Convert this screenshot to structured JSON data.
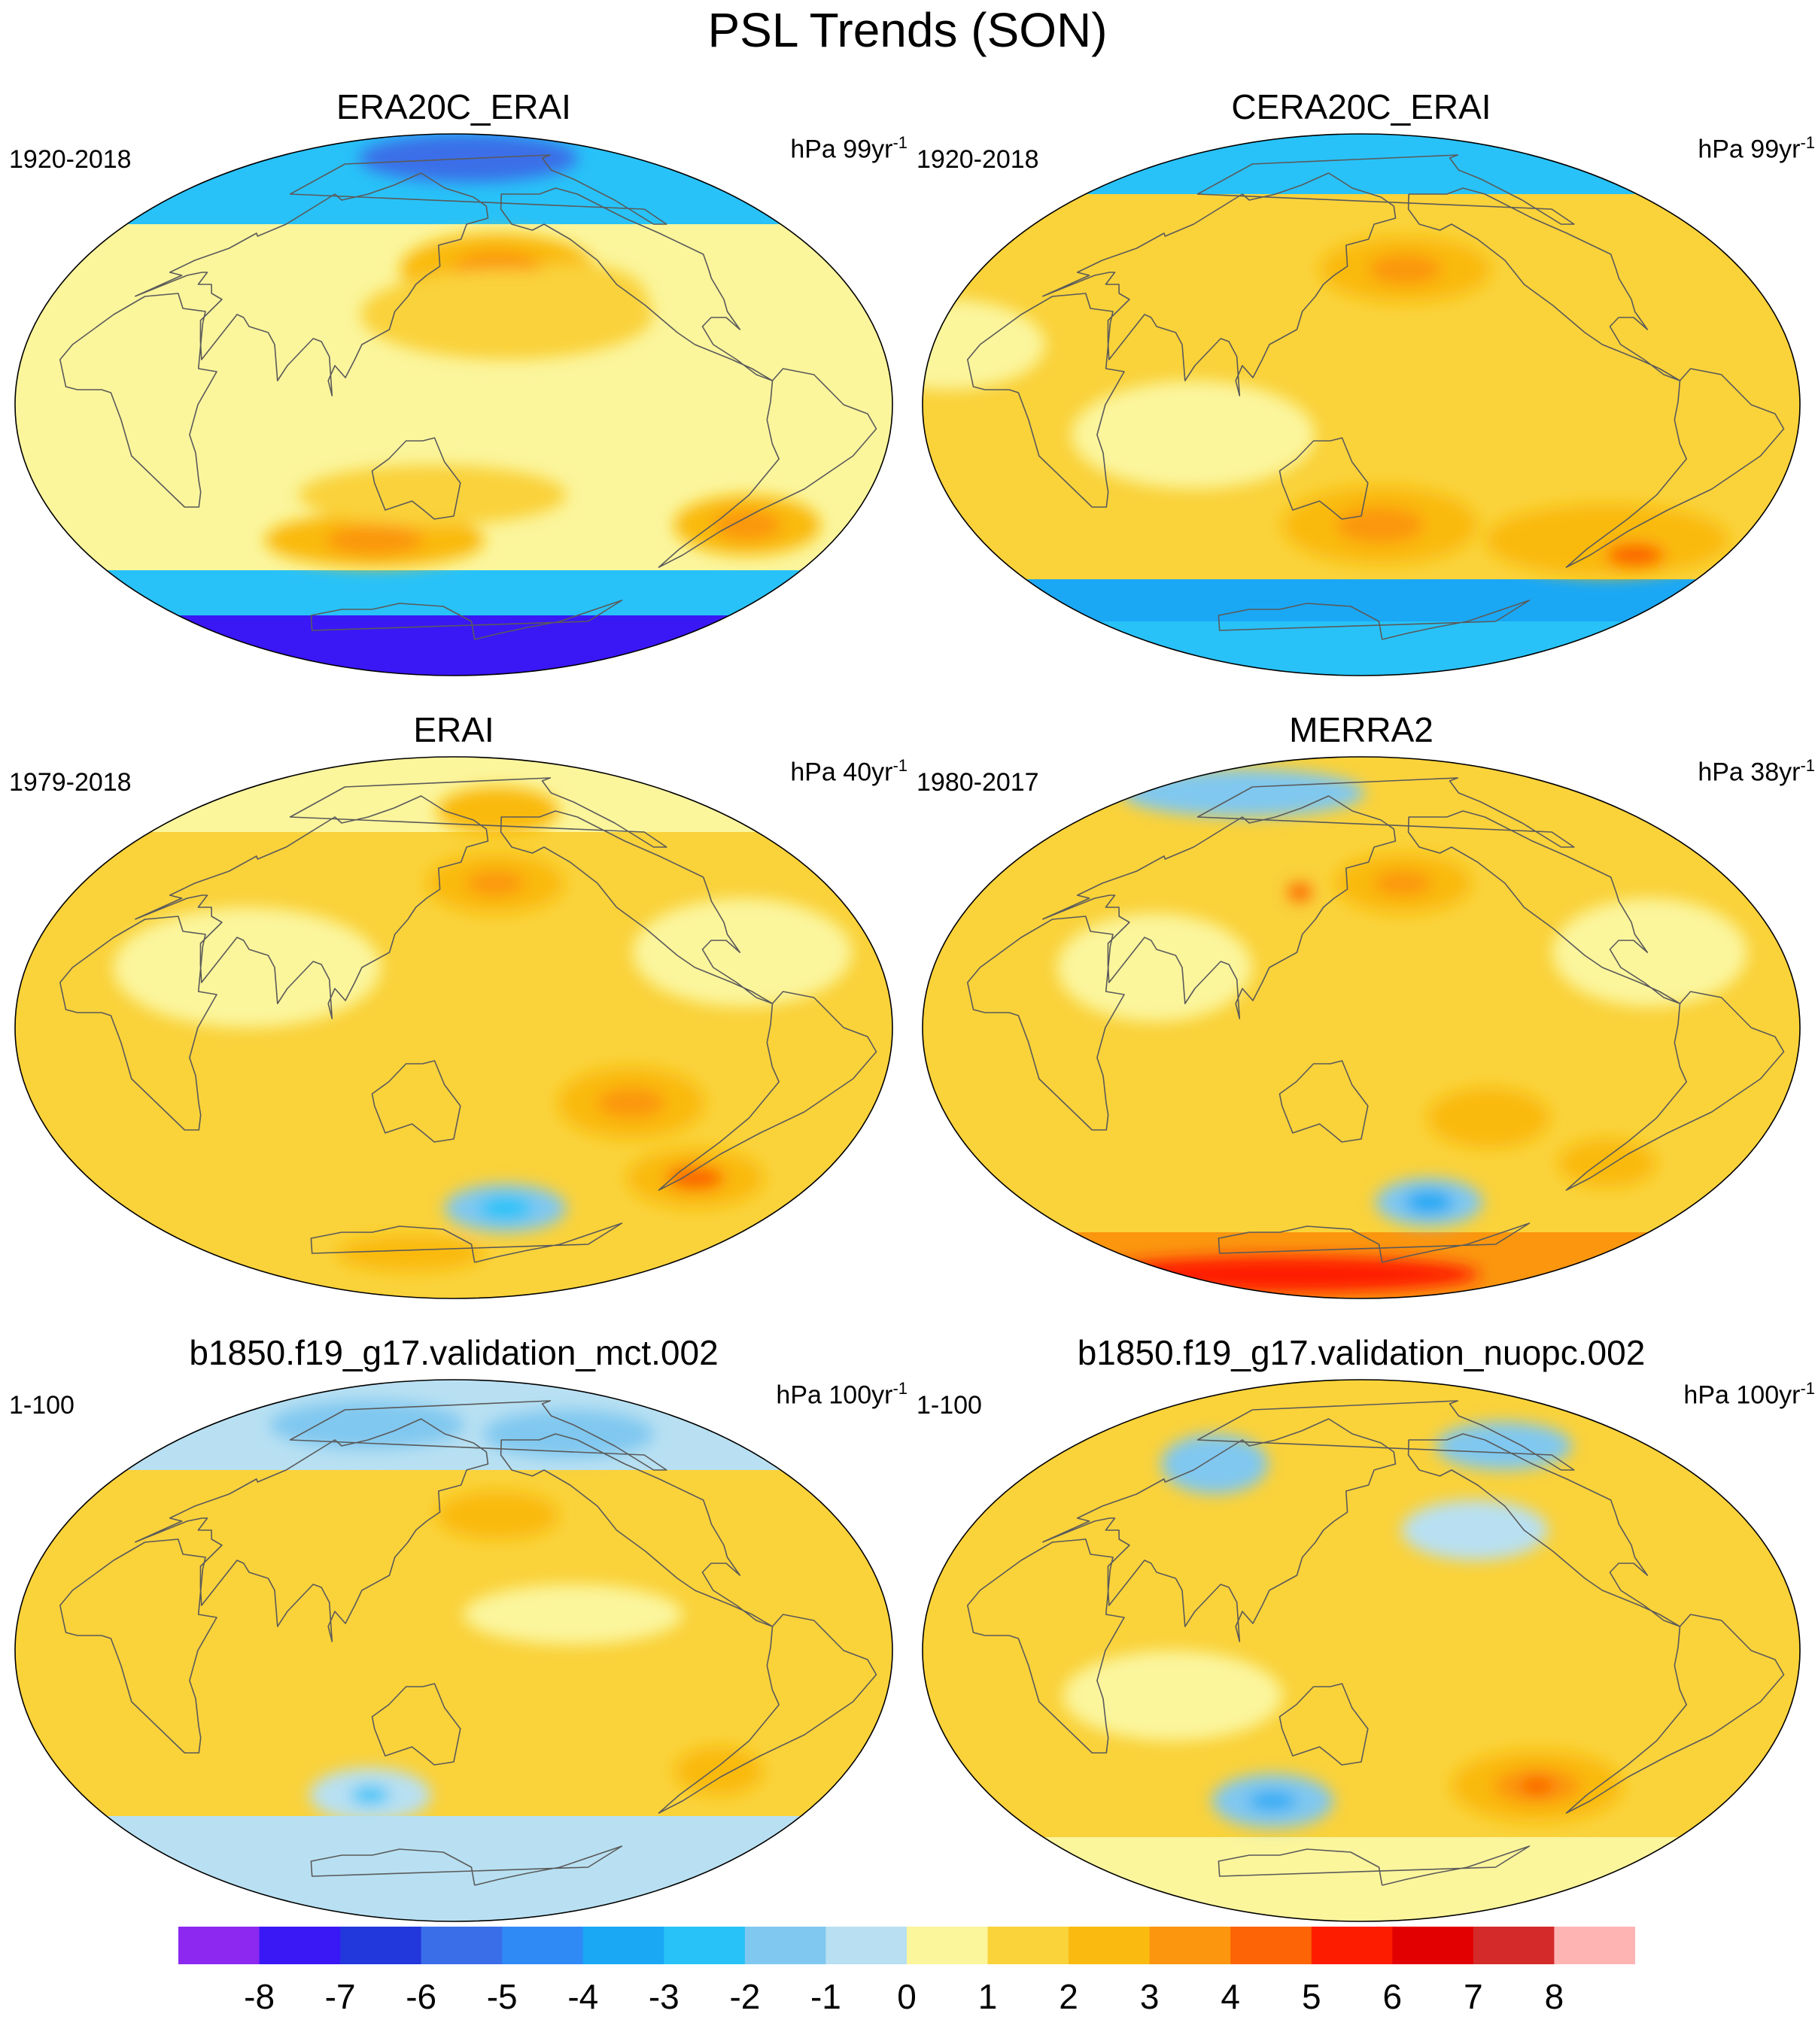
{
  "title": "PSL Trends (SON)",
  "palette": [
    "#8c28f0",
    "#3a17f5",
    "#2237dc",
    "#3a6ee8",
    "#2f8af5",
    "#1aa8f5",
    "#28c2f8",
    "#80c8f0",
    "#b8e0f2",
    "#fbf59c",
    "#fad23a",
    "#faba10",
    "#fb960e",
    "#fc6405",
    "#fe1c00",
    "#e30000",
    "#d42a2a",
    "#ffb4b4"
  ],
  "colorbar": {
    "labels": [
      "-8",
      "-7",
      "-6",
      "-5",
      "-4",
      "-3",
      "-2",
      "-1",
      "0",
      "1",
      "2",
      "3",
      "4",
      "5",
      "6",
      "7",
      "8"
    ],
    "values": [
      -8,
      -7,
      -6,
      -5,
      -4,
      -3,
      -2,
      -1,
      0,
      1,
      2,
      3,
      4,
      5,
      6,
      7,
      8
    ]
  },
  "panels": [
    {
      "title": "ERA20C_ERAI",
      "period": "1920-2018",
      "units": {
        "prefix": "hPa",
        "value": "99yr",
        "sup": "-1"
      },
      "base": 0,
      "bands": [
        {
          "latS": 60,
          "latN": 90,
          "level": -3
        },
        {
          "latS": -70,
          "latN": -55,
          "level": -3
        },
        {
          "latS": -90,
          "latN": -70,
          "level": -8
        }
      ],
      "blobs": [
        {
          "lon": 175,
          "lat": 82,
          "rx": 45,
          "ry": 8,
          "level": -6
        },
        {
          "lon": 175,
          "lat": 45,
          "rx": 40,
          "ry": 12,
          "level": 2
        },
        {
          "lon": 175,
          "lat": 45,
          "rx": 18,
          "ry": 6,
          "level": 3
        },
        {
          "lon": 105,
          "lat": -45,
          "rx": 45,
          "ry": 9,
          "level": 2
        },
        {
          "lon": 105,
          "lat": -45,
          "rx": 20,
          "ry": 5,
          "level": 3
        },
        {
          "lon": -55,
          "lat": -40,
          "rx": 30,
          "ry": 10,
          "level": 2
        },
        {
          "lon": -55,
          "lat": -40,
          "rx": 14,
          "ry": 5,
          "level": 3
        },
        {
          "lon": 175,
          "lat": 30,
          "rx": 60,
          "ry": 15,
          "level": 1
        },
        {
          "lon": -150,
          "lat": 35,
          "rx": 30,
          "ry": 12,
          "level": 1
        },
        {
          "lon": 140,
          "lat": -30,
          "rx": 55,
          "ry": 10,
          "level": 1
        }
      ]
    },
    {
      "title": "CERA20C_ERAI",
      "period": "1920-2018",
      "units": {
        "prefix": "hPa",
        "value": "99yr",
        "sup": "-1"
      },
      "base": 1,
      "bands": [
        {
          "latS": 70,
          "latN": 90,
          "level": -3
        },
        {
          "latS": -72,
          "latN": -58,
          "level": -4
        },
        {
          "latS": -90,
          "latN": -72,
          "level": -3
        }
      ],
      "blobs": [
        {
          "lon": 175,
          "lat": 45,
          "rx": 35,
          "ry": 11,
          "level": 2
        },
        {
          "lon": 175,
          "lat": 45,
          "rx": 15,
          "ry": 5,
          "level": 3
        },
        {
          "lon": 160,
          "lat": -40,
          "rx": 40,
          "ry": 13,
          "level": 2
        },
        {
          "lon": 160,
          "lat": -40,
          "rx": 18,
          "ry": 6,
          "level": 3
        },
        {
          "lon": -70,
          "lat": -45,
          "rx": 50,
          "ry": 12,
          "level": 2
        },
        {
          "lon": -40,
          "lat": -50,
          "rx": 12,
          "ry": 4,
          "level": 4
        },
        {
          "lon": 80,
          "lat": -10,
          "rx": 50,
          "ry": 18,
          "level": 0
        },
        {
          "lon": -30,
          "lat": 20,
          "rx": 40,
          "ry": 15,
          "level": 0
        }
      ]
    },
    {
      "title": "ERAI",
      "period": "1979-2018",
      "units": {
        "prefix": "hPa",
        "value": "40yr",
        "sup": "-1"
      },
      "base": 1,
      "bands": [
        {
          "latS": 65,
          "latN": 90,
          "level": 0
        }
      ],
      "blobs": [
        {
          "lon": 60,
          "lat": 20,
          "rx": 55,
          "ry": 20,
          "level": 0
        },
        {
          "lon": -80,
          "lat": 25,
          "rx": 45,
          "ry": 18,
          "level": 0
        },
        {
          "lon": 175,
          "lat": 48,
          "rx": 28,
          "ry": 10,
          "level": 2
        },
        {
          "lon": 175,
          "lat": 48,
          "rx": 12,
          "ry": 4,
          "level": 3
        },
        {
          "lon": -130,
          "lat": -25,
          "rx": 30,
          "ry": 12,
          "level": 2
        },
        {
          "lon": -130,
          "lat": -25,
          "rx": 14,
          "ry": 5,
          "level": 3
        },
        {
          "lon": -170,
          "lat": -60,
          "rx": 25,
          "ry": 8,
          "level": -2
        },
        {
          "lon": -170,
          "lat": -60,
          "rx": 11,
          "ry": 4,
          "level": -3
        },
        {
          "lon": -60,
          "lat": -50,
          "rx": 28,
          "ry": 10,
          "level": 2
        },
        {
          "lon": -60,
          "lat": -50,
          "rx": 12,
          "ry": 4,
          "level": 4
        },
        {
          "lon": 95,
          "lat": -75,
          "rx": 30,
          "ry": 6,
          "level": 2
        },
        {
          "lon": -160,
          "lat": 72,
          "rx": 25,
          "ry": 8,
          "level": 2
        }
      ]
    },
    {
      "title": "MERRA2",
      "period": "1980-2017",
      "units": {
        "prefix": "hPa",
        "value": "38yr",
        "sup": "-1"
      },
      "base": 1,
      "bands": [
        {
          "latS": -90,
          "latN": -68,
          "level": 3
        }
      ],
      "blobs": [
        {
          "lon": -20,
          "lat": 78,
          "rx": 50,
          "ry": 8,
          "level": -2
        },
        {
          "lon": 60,
          "lat": 20,
          "rx": 40,
          "ry": 18,
          "level": 0
        },
        {
          "lon": -80,
          "lat": 25,
          "rx": 40,
          "ry": 18,
          "level": 0
        },
        {
          "lon": 175,
          "lat": 48,
          "rx": 28,
          "ry": 10,
          "level": 2
        },
        {
          "lon": 175,
          "lat": 48,
          "rx": 12,
          "ry": 4,
          "level": 3
        },
        {
          "lon": 115,
          "lat": 45,
          "rx": 5,
          "ry": 3,
          "level": 4
        },
        {
          "lon": -150,
          "lat": -30,
          "rx": 25,
          "ry": 10,
          "level": 2
        },
        {
          "lon": -160,
          "lat": -58,
          "rx": 22,
          "ry": 8,
          "level": -2
        },
        {
          "lon": -160,
          "lat": -58,
          "rx": 10,
          "ry": 4,
          "level": -4
        },
        {
          "lon": 20,
          "lat": -82,
          "rx": 80,
          "ry": 6,
          "level": 5
        },
        {
          "lon": -70,
          "lat": -45,
          "rx": 20,
          "ry": 8,
          "level": 2
        }
      ]
    },
    {
      "title": "b1850.f19_g17.validation_mct.002",
      "period": "1-100",
      "units": {
        "prefix": "hPa",
        "value": "100yr",
        "sup": "-1"
      },
      "base": 1,
      "bands": [
        {
          "latS": 60,
          "latN": 90,
          "level": -1
        },
        {
          "latS": -90,
          "latN": -55,
          "level": -1
        }
      ],
      "blobs": [
        {
          "lon": 40,
          "lat": 75,
          "rx": 40,
          "ry": 8,
          "level": -2
        },
        {
          "lon": -80,
          "lat": 72,
          "rx": 35,
          "ry": 8,
          "level": -2
        },
        {
          "lon": 100,
          "lat": -48,
          "rx": 25,
          "ry": 9,
          "level": -1
        },
        {
          "lon": 100,
          "lat": -48,
          "rx": 8,
          "ry": 3,
          "level": -3
        },
        {
          "lon": -70,
          "lat": -40,
          "rx": 18,
          "ry": 8,
          "level": 2
        },
        {
          "lon": 175,
          "lat": 45,
          "rx": 25,
          "ry": 8,
          "level": 2
        },
        {
          "lon": -160,
          "lat": 12,
          "rx": 45,
          "ry": 10,
          "level": 0
        }
      ]
    },
    {
      "title": "b1850.f19_g17.validation_nuopc.002",
      "period": "1-100",
      "units": {
        "prefix": "hPa",
        "value": "100yr",
        "sup": "-1"
      },
      "base": 1,
      "bands": [
        {
          "latS": -90,
          "latN": -62,
          "level": 0
        }
      ],
      "blobs": [
        {
          "lon": 30,
          "lat": 62,
          "rx": 22,
          "ry": 10,
          "level": -2
        },
        {
          "lon": -70,
          "lat": 68,
          "rx": 28,
          "ry": 8,
          "level": -2
        },
        {
          "lon": -150,
          "lat": 40,
          "rx": 30,
          "ry": 10,
          "level": -1
        },
        {
          "lon": 95,
          "lat": -50,
          "rx": 25,
          "ry": 9,
          "level": -2
        },
        {
          "lon": 95,
          "lat": -50,
          "rx": 10,
          "ry": 3,
          "level": -4
        },
        {
          "lon": -110,
          "lat": -45,
          "rx": 35,
          "ry": 12,
          "level": 2
        },
        {
          "lon": -110,
          "lat": -45,
          "rx": 18,
          "ry": 6,
          "level": 3
        },
        {
          "lon": -110,
          "lat": -45,
          "rx": 7,
          "ry": 3,
          "level": 4
        },
        {
          "lon": 70,
          "lat": -15,
          "rx": 45,
          "ry": 15,
          "level": 0
        }
      ]
    }
  ]
}
